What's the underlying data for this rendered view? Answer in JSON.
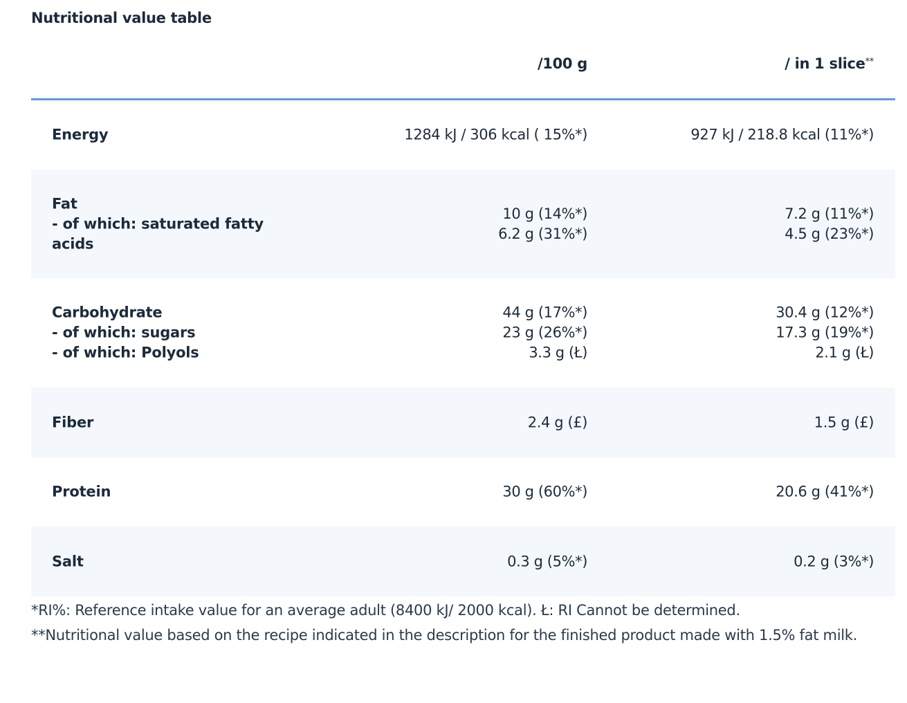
{
  "title": "Nutritional value table",
  "columns": {
    "per100": "/100 g",
    "perSlice": "/ in 1 slice",
    "perSliceMark": "**"
  },
  "rows": [
    {
      "label": [
        "Energy"
      ],
      "per100": [
        "1284 kJ / 306 kcal ( 15%*)"
      ],
      "perSlice": [
        "927 kJ / 218.8 kcal (11%*)"
      ]
    },
    {
      "label": [
        "Fat",
        "- of which: saturated fatty acids"
      ],
      "per100": [
        "10 g (14%*)",
        "6.2 g (31%*)"
      ],
      "perSlice": [
        "7.2 g (11%*)",
        "4.5 g (23%*)"
      ]
    },
    {
      "label": [
        "Carbohydrate",
        "- of which: sugars",
        "- of which: Polyols"
      ],
      "per100": [
        "44 g (17%*)",
        "23 g (26%*)",
        "3.3 g (Ł)"
      ],
      "perSlice": [
        "30.4 g (12%*)",
        "17.3 g (19%*)",
        "2.1 g (Ł)"
      ]
    },
    {
      "label": [
        "Fiber"
      ],
      "per100": [
        "2.4 g (£)"
      ],
      "perSlice": [
        "1.5 g (£)"
      ]
    },
    {
      "label": [
        "Protein"
      ],
      "per100": [
        "30 g (60%*)"
      ],
      "perSlice": [
        "20.6 g (41%*)"
      ]
    },
    {
      "label": [
        "Salt"
      ],
      "per100": [
        "0.3 g (5%*)"
      ],
      "perSlice": [
        "0.2 g (3%*)"
      ]
    }
  ],
  "footnotes": [
    "*RI%: Reference intake value for an average adult (8400 kJ/ 2000 kcal). Ł: RI Cannot be determined.",
    "**Nutritional value based on the recipe indicated in the description for the finished product made with 1.5% fat milk."
  ],
  "colors": {
    "text": "#1c2b3b",
    "rule": "#5b9be0",
    "shade": "#f4f8fc"
  }
}
